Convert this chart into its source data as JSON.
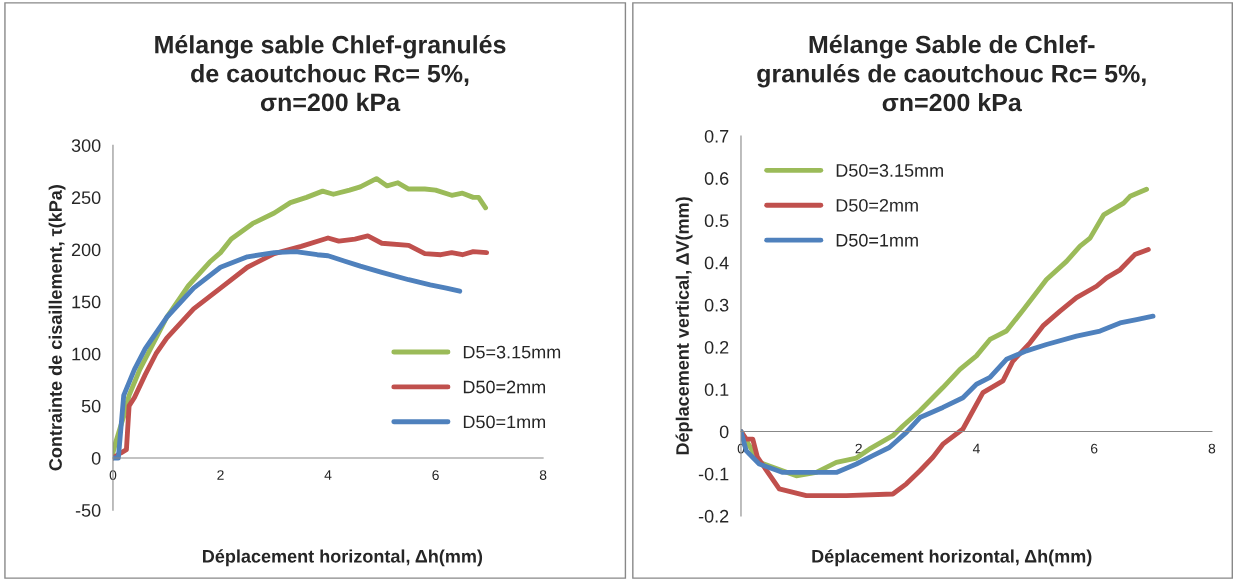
{
  "chart_data": [
    {
      "type": "line",
      "title": "Mélange sable Chlef-granulés\nde caoutchouc Rc= 5%,\nσn=200 kPa",
      "xlabel": "Déplacement horizontal, Δh(mm)",
      "ylabel": "Contrainte de cisaillement, τ(kPa)",
      "xlim": [
        0,
        8
      ],
      "xticks": [
        0,
        2,
        4,
        6,
        8
      ],
      "ylim": [
        -50,
        300
      ],
      "yticks": [
        -50,
        0,
        50,
        100,
        150,
        200,
        250,
        300
      ],
      "legend": "bottom right",
      "grid": false,
      "series": [
        {
          "name": "D5=3.15mm",
          "color": "#9bbb59",
          "x": [
            0,
            0.05,
            0.2,
            0.3,
            0.5,
            0.8,
            1,
            1.4,
            1.8,
            2,
            2.2,
            2.6,
            3,
            3.3,
            3.6,
            3.9,
            4.1,
            4.4,
            4.6,
            4.9,
            5.1,
            5.3,
            5.5,
            5.8,
            6,
            6.3,
            6.5,
            6.7,
            6.8,
            6.93
          ],
          "values": [
            5,
            15,
            40,
            60,
            85,
            115,
            135,
            165,
            188,
            197,
            210,
            225,
            235,
            245,
            250,
            256,
            253,
            257,
            260,
            268,
            261,
            264,
            258,
            258,
            257,
            252,
            254,
            250,
            250,
            240
          ]
        },
        {
          "name": "D50=2mm",
          "color": "#c0504d",
          "x": [
            0,
            0.15,
            0.25,
            0.3,
            0.4,
            0.6,
            0.8,
            1,
            1.5,
            2,
            2.5,
            3,
            3.5,
            4,
            4.2,
            4.5,
            4.74,
            5,
            5.5,
            5.8,
            6.1,
            6.3,
            6.5,
            6.7,
            6.95
          ],
          "values": [
            0,
            5,
            8,
            50,
            58,
            80,
            100,
            115,
            143,
            163,
            183,
            196,
            203,
            211,
            208,
            210,
            213,
            206,
            204,
            196,
            195,
            197,
            195,
            198,
            197
          ]
        },
        {
          "name": "D50=1mm",
          "color": "#4f81bd",
          "x": [
            0,
            0.1,
            0.2,
            0.4,
            0.6,
            1,
            1.5,
            2,
            2.5,
            3,
            3.4,
            3.8,
            4,
            4.3,
            4.6,
            5,
            5.5,
            5.9,
            6.2,
            6.45
          ],
          "values": [
            0,
            0,
            60,
            85,
            105,
            135,
            163,
            183,
            193,
            197,
            198,
            195,
            194,
            189,
            184,
            178,
            171,
            166,
            163,
            160
          ]
        }
      ]
    },
    {
      "type": "line",
      "title": "Mélange Sable de Chlef-\ngranulés de caoutchouc Rc= 5%,\nσn=200 kPa",
      "xlabel": "Déplacement horizontal, Δh(mm)",
      "ylabel": "Déplacement vertical, ΔV(mm)",
      "xlim": [
        0,
        8
      ],
      "xticks": [
        0,
        2,
        4,
        6,
        8
      ],
      "ylim": [
        -0.2,
        0.7
      ],
      "yticks": [
        {
          "value": -0.2,
          "label": "-0.2"
        },
        {
          "value": -0.1,
          "label": "-0.1"
        },
        0,
        0.1,
        0.2,
        0.3,
        0.4,
        0.5,
        0.6,
        0.7
      ],
      "legend": "top left",
      "grid": false,
      "series": [
        {
          "name": "D50=3.15mm",
          "color": "#9bbb59",
          "x": [
            0,
            0.31,
            0.94,
            1.28,
            1.62,
            1.96,
            2.18,
            2.58,
            2.75,
            3.04,
            3.43,
            3.72,
            4.0,
            4.23,
            4.51,
            4.8,
            5.19,
            5.53,
            5.76,
            5.93,
            6.16,
            6.5,
            6.61,
            6.89
          ],
          "values": [
            0,
            -0.073,
            -0.105,
            -0.097,
            -0.073,
            -0.063,
            -0.042,
            -0.01,
            0.013,
            0.049,
            0.104,
            0.147,
            0.179,
            0.218,
            0.238,
            0.289,
            0.36,
            0.403,
            0.439,
            0.458,
            0.513,
            0.541,
            0.557,
            0.574
          ]
        },
        {
          "name": "D50=2mm",
          "color": "#c0504d",
          "x": [
            0,
            0.09,
            0.2,
            0.28,
            0.65,
            1.11,
            1.79,
            2.58,
            2.81,
            3.04,
            3.26,
            3.43,
            3.77,
            4.11,
            4.45,
            4.62,
            4.91,
            5.13,
            5.42,
            5.7,
            6.04,
            6.21,
            6.44,
            6.69,
            6.92
          ],
          "values": [
            0,
            -0.018,
            -0.018,
            -0.061,
            -0.136,
            -0.152,
            -0.152,
            -0.148,
            -0.124,
            -0.093,
            -0.061,
            -0.03,
            0.006,
            0.092,
            0.12,
            0.167,
            0.21,
            0.25,
            0.285,
            0.317,
            0.344,
            0.364,
            0.383,
            0.419,
            0.431
          ]
        },
        {
          "name": "D50=1mm",
          "color": "#4f81bd",
          "x": [
            0,
            0.09,
            0.31,
            0.71,
            1.62,
            1.96,
            2.24,
            2.52,
            2.81,
            3.04,
            3.43,
            3.77,
            4.0,
            4.23,
            4.51,
            4.85,
            5.19,
            5.7,
            6.1,
            6.44,
            6.72,
            7.0
          ],
          "values": [
            0,
            -0.046,
            -0.077,
            -0.097,
            -0.097,
            -0.077,
            -0.057,
            -0.038,
            -0.002,
            0.033,
            0.057,
            0.08,
            0.112,
            0.128,
            0.171,
            0.191,
            0.206,
            0.226,
            0.238,
            0.257,
            0.265,
            0.273
          ]
        }
      ]
    }
  ]
}
